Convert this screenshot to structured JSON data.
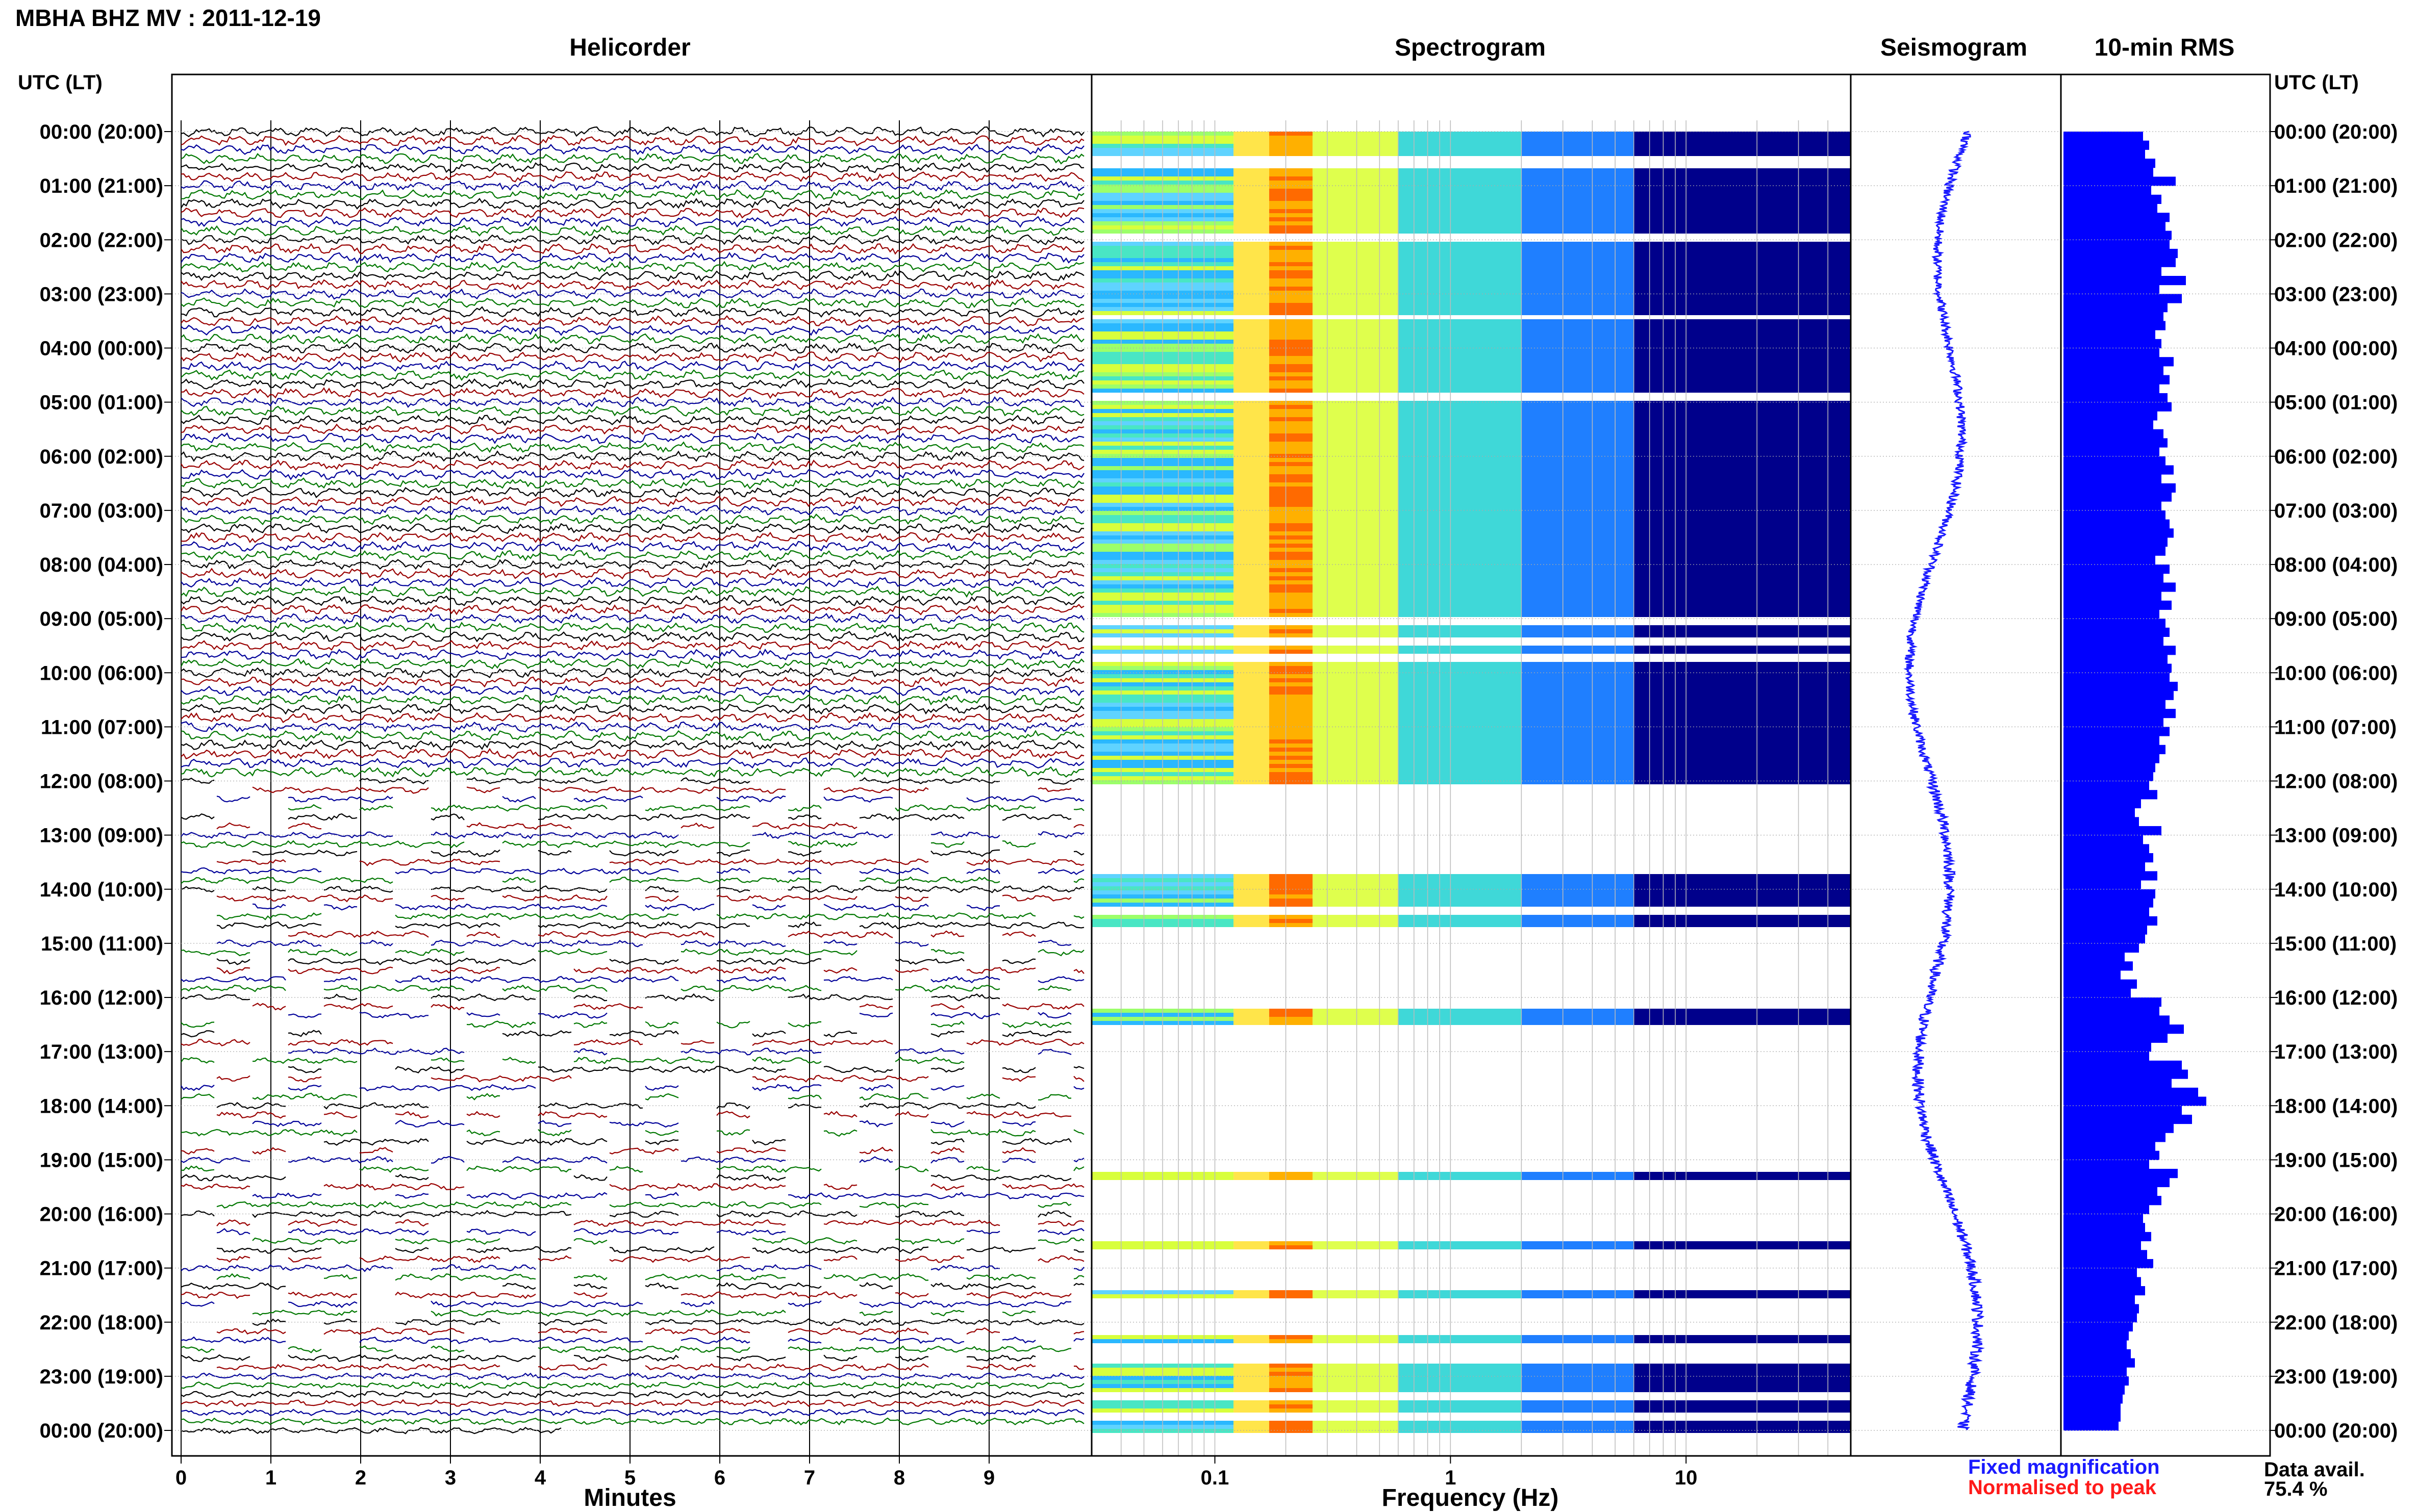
{
  "header": {
    "station": "MBHA BHZ MV : 2011-12-19",
    "utc_header_left": "UTC (LT)",
    "utc_header_right": "UTC (LT)"
  },
  "panels": {
    "helicorder": "Helicorder",
    "spectrogram": "Spectrogram",
    "seismogram": "Seismogram",
    "rms": "10-min RMS"
  },
  "axes": {
    "minutes_label": "Minutes",
    "frequency_label": "Frequency (Hz)",
    "minute_ticks": [
      "0",
      "1",
      "2",
      "3",
      "4",
      "5",
      "6",
      "7",
      "8",
      "9"
    ],
    "freq_ticks": [
      "0.1",
      "1",
      "10"
    ]
  },
  "time_labels": [
    "00:00 (20:00)",
    "01:00 (21:00)",
    "02:00 (22:00)",
    "03:00 (23:00)",
    "04:00 (00:00)",
    "05:00 (01:00)",
    "06:00 (02:00)",
    "07:00 (03:00)",
    "08:00 (04:00)",
    "09:00 (05:00)",
    "10:00 (06:00)",
    "11:00 (07:00)",
    "12:00 (08:00)",
    "13:00 (09:00)",
    "14:00 (10:00)",
    "15:00 (11:00)",
    "16:00 (12:00)",
    "17:00 (13:00)",
    "18:00 (14:00)",
    "19:00 (15:00)",
    "20:00 (16:00)",
    "21:00 (17:00)",
    "22:00 (18:00)",
    "23:00 (19:00)",
    "00:00 (20:00)"
  ],
  "legend": {
    "fixed": "Fixed magnification",
    "normalised": "Normalised to peak",
    "avail_label": "Data avail.",
    "avail_value": "75.4 %"
  },
  "colors": {
    "trace_black": "#000000",
    "trace_red": "#990000",
    "trace_blue": "#000099",
    "trace_green": "#007700",
    "rms_fill": "#0000ff",
    "seismogram": "#1a1aff",
    "spec_dark": "#00008b",
    "spec_hot": "#ff6a00"
  },
  "chart_data": [
    {
      "type": "line",
      "name": "helicorder",
      "title": "Helicorder",
      "xlabel": "Minutes",
      "xlim": [
        0,
        10
      ],
      "trace_colors_cycle": [
        "black",
        "red",
        "blue",
        "green"
      ],
      "rows_per_hour": 6,
      "continuous_until_utc": "12:00"
    },
    {
      "type": "heatmap",
      "name": "spectrogram",
      "title": "Spectrogram",
      "xlabel": "Frequency (Hz)",
      "xscale": "log",
      "xlim": [
        0.03,
        50
      ],
      "peak_frequency_hz": 0.2,
      "gap_intervals_utc": [
        [
          0.38,
          0.62
        ],
        [
          1.85,
          2.0
        ],
        [
          3.35,
          3.45
        ],
        [
          4.8,
          4.9
        ],
        [
          8.95,
          9.05
        ],
        [
          9.3,
          9.45
        ],
        [
          9.6,
          9.75
        ],
        [
          12.0,
          13.7
        ],
        [
          13.95,
          14.0
        ],
        [
          14.3,
          14.45
        ],
        [
          14.65,
          16.15
        ],
        [
          16.5,
          19.15
        ],
        [
          19.3,
          20.5
        ],
        [
          20.6,
          21.4
        ],
        [
          21.55,
          22.2
        ],
        [
          22.35,
          22.7
        ],
        [
          23.25,
          23.4
        ],
        [
          23.65,
          23.75
        ]
      ]
    },
    {
      "type": "line",
      "name": "seismogram",
      "title": "Seismogram"
    },
    {
      "type": "bar",
      "name": "10-min RMS",
      "title": "10-min RMS",
      "orientation": "horizontal",
      "values": [
        39,
        42,
        40,
        45,
        44,
        55,
        43,
        48,
        46,
        52,
        50,
        53,
        52,
        56,
        55,
        48,
        60,
        47,
        58,
        51,
        49,
        50,
        45,
        48,
        47,
        54,
        49,
        52,
        47,
        51,
        53,
        46,
        44,
        49,
        51,
        47,
        50,
        54,
        48,
        55,
        53,
        48,
        50,
        52,
        54,
        51,
        50,
        45,
        52,
        49,
        55,
        48,
        53,
        47,
        50,
        52,
        49,
        55,
        51,
        53,
        52,
        56,
        54,
        50,
        55,
        49,
        52,
        47,
        50,
        47,
        45,
        44,
        42,
        46,
        38,
        35,
        37,
        48,
        39,
        42,
        44,
        40,
        46,
        38,
        45,
        44,
        42,
        46,
        41,
        40,
        37,
        30,
        34,
        28,
        36,
        33,
        48,
        47,
        52,
        59,
        51,
        43,
        42,
        58,
        61,
        53,
        66,
        70,
        58,
        63,
        54,
        50,
        45,
        47,
        42,
        56,
        52,
        46,
        48,
        42,
        39,
        40,
        43,
        38,
        41,
        44,
        36,
        38,
        40,
        35,
        37,
        36,
        34,
        32,
        31,
        33,
        35,
        31,
        32,
        30,
        29,
        28,
        28,
        27
      ]
    }
  ]
}
